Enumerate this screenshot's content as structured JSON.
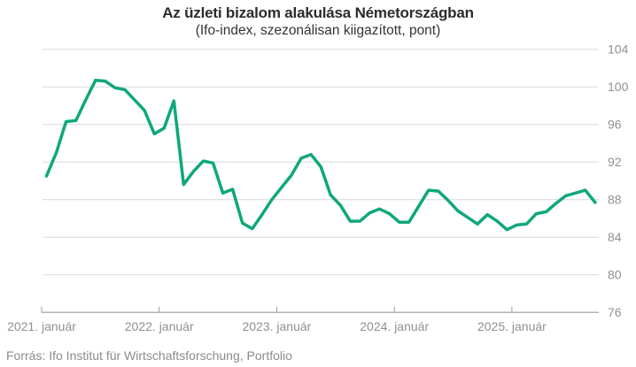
{
  "header": {
    "title": "Az üzleti bizalom alakulása Németországban",
    "subtitle": "(Ifo-index, szezonálisan kiigazított, pont)"
  },
  "footer": {
    "source": "Forrás: Ifo Institut für Wirtschaftsforschung, Portfolio"
  },
  "chart_data": {
    "type": "line",
    "title": "Az üzleti bizalom alakulása Németországban",
    "subtitle": "(Ifo-index, szezonálisan kiigazított, pont)",
    "series_name": "Ifo-index",
    "x": [
      "2021-01",
      "2021-02",
      "2021-03",
      "2021-04",
      "2021-05",
      "2021-06",
      "2021-07",
      "2021-08",
      "2021-09",
      "2021-10",
      "2021-11",
      "2021-12",
      "2022-01",
      "2022-02",
      "2022-03",
      "2022-04",
      "2022-05",
      "2022-06",
      "2022-07",
      "2022-08",
      "2022-09",
      "2022-10",
      "2022-11",
      "2022-12",
      "2023-01",
      "2023-02",
      "2023-03",
      "2023-04",
      "2023-05",
      "2023-06",
      "2023-07",
      "2023-08",
      "2023-09",
      "2023-10",
      "2023-11",
      "2023-12",
      "2024-01",
      "2024-02",
      "2024-03",
      "2024-04",
      "2024-05",
      "2024-06",
      "2024-07",
      "2024-08",
      "2024-09",
      "2024-10",
      "2024-11",
      "2024-12",
      "2025-01",
      "2025-02",
      "2025-03",
      "2025-04",
      "2025-05",
      "2025-06",
      "2025-07",
      "2025-08",
      "2025-09"
    ],
    "values": [
      90.5,
      93.0,
      96.3,
      96.4,
      98.6,
      100.7,
      100.6,
      99.9,
      99.7,
      98.6,
      97.5,
      95.0,
      95.6,
      98.5,
      89.6,
      91.0,
      92.1,
      91.9,
      88.7,
      89.1,
      85.5,
      84.9,
      86.4,
      88.0,
      89.3,
      90.6,
      92.4,
      92.8,
      91.5,
      88.5,
      87.4,
      85.7,
      85.7,
      86.6,
      87.0,
      86.5,
      85.6,
      85.6,
      87.3,
      89.0,
      88.9,
      87.9,
      86.8,
      86.1,
      85.4,
      86.4,
      85.7,
      84.8,
      85.3,
      85.4,
      86.5,
      86.7,
      87.6,
      88.4,
      88.7,
      89.0,
      87.7
    ],
    "ylim": [
      76,
      104
    ],
    "yticks": [
      76,
      80,
      84,
      88,
      92,
      96,
      100,
      104
    ],
    "ytick_side": "right",
    "xtick_labels": [
      "2021. január",
      "2022. január",
      "2023. január",
      "2024. január",
      "2025. január"
    ],
    "xtick_month_indices": [
      0,
      12,
      24,
      36,
      48
    ],
    "grid": "horizontal",
    "legend": "none",
    "line_color": "#10a77c",
    "grid_color": "#d9d9d9",
    "axis_color": "#9b9b9b",
    "label_color": "#909090"
  }
}
